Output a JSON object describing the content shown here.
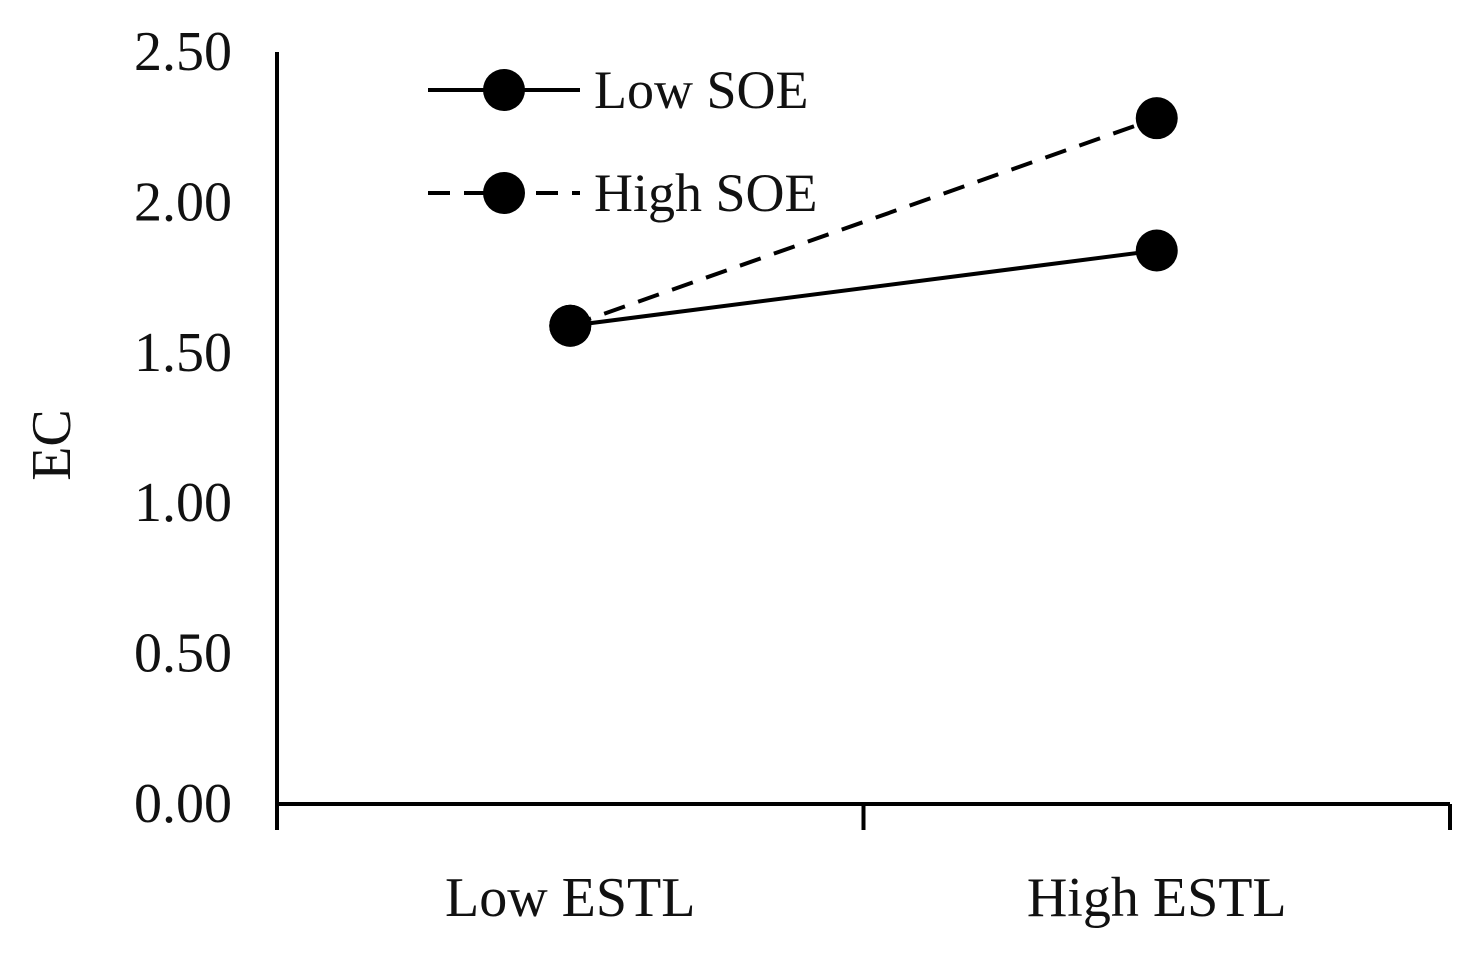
{
  "chart_data": {
    "type": "line",
    "title": "",
    "xlabel": "",
    "ylabel": "EC",
    "categories": [
      "Low ESTL",
      "High ESTL"
    ],
    "ylim": [
      0,
      2.5
    ],
    "yticks": [
      "0.00",
      "0.50",
      "1.00",
      "1.50",
      "2.00",
      "2.50"
    ],
    "ytick_values": [
      0,
      0.5,
      1.0,
      1.5,
      2.0,
      2.5
    ],
    "grid": false,
    "legend_position": "top-left",
    "series": [
      {
        "name": "Low SOE",
        "values": [
          1.59,
          1.84
        ],
        "line_style": "solid",
        "color": "#000000"
      },
      {
        "name": "High SOE",
        "values": [
          1.59,
          2.28
        ],
        "line_style": "dashed",
        "color": "#000000"
      }
    ]
  }
}
